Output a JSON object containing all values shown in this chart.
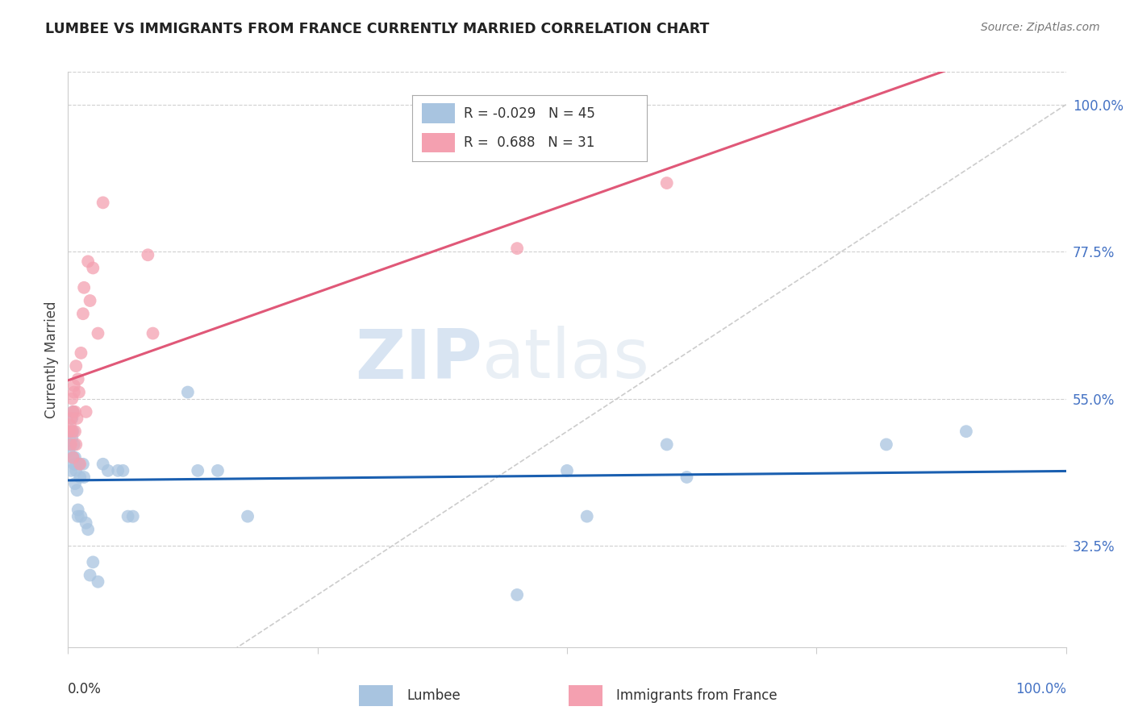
{
  "title": "LUMBEE VS IMMIGRANTS FROM FRANCE CURRENTLY MARRIED CORRELATION CHART",
  "source": "Source: ZipAtlas.com",
  "ylabel": "Currently Married",
  "ytick_labels": [
    "100.0%",
    "77.5%",
    "55.0%",
    "32.5%"
  ],
  "ytick_values": [
    1.0,
    0.775,
    0.55,
    0.325
  ],
  "xlim": [
    0.0,
    1.0
  ],
  "ylim": [
    0.17,
    1.05
  ],
  "lumbee_R": -0.029,
  "lumbee_N": 45,
  "france_R": 0.688,
  "france_N": 31,
  "lumbee_color": "#a8c4e0",
  "france_color": "#f4a0b0",
  "lumbee_line_color": "#1a5fb0",
  "france_line_color": "#e05878",
  "diagonal_color": "#cccccc",
  "lumbee_x": [
    0.001,
    0.002,
    0.003,
    0.003,
    0.004,
    0.004,
    0.005,
    0.005,
    0.005,
    0.006,
    0.006,
    0.007,
    0.007,
    0.008,
    0.008,
    0.009,
    0.01,
    0.01,
    0.011,
    0.012,
    0.013,
    0.015,
    0.016,
    0.018,
    0.02,
    0.022,
    0.025,
    0.03,
    0.035,
    0.04,
    0.05,
    0.055,
    0.06,
    0.065,
    0.12,
    0.13,
    0.15,
    0.18,
    0.45,
    0.5,
    0.52,
    0.6,
    0.62,
    0.82,
    0.9
  ],
  "lumbee_y": [
    0.47,
    0.48,
    0.44,
    0.5,
    0.52,
    0.49,
    0.46,
    0.5,
    0.53,
    0.45,
    0.48,
    0.42,
    0.46,
    0.44,
    0.45,
    0.41,
    0.38,
    0.37,
    0.45,
    0.43,
    0.37,
    0.45,
    0.43,
    0.36,
    0.35,
    0.28,
    0.3,
    0.27,
    0.45,
    0.44,
    0.44,
    0.44,
    0.37,
    0.37,
    0.56,
    0.44,
    0.44,
    0.37,
    0.25,
    0.44,
    0.37,
    0.48,
    0.43,
    0.48,
    0.5
  ],
  "france_x": [
    0.001,
    0.002,
    0.003,
    0.003,
    0.004,
    0.004,
    0.005,
    0.005,
    0.006,
    0.006,
    0.007,
    0.007,
    0.008,
    0.008,
    0.009,
    0.01,
    0.011,
    0.012,
    0.013,
    0.015,
    0.016,
    0.018,
    0.02,
    0.022,
    0.025,
    0.03,
    0.035,
    0.08,
    0.085,
    0.45,
    0.6
  ],
  "france_y": [
    0.5,
    0.51,
    0.48,
    0.52,
    0.5,
    0.55,
    0.46,
    0.53,
    0.56,
    0.57,
    0.5,
    0.53,
    0.6,
    0.48,
    0.52,
    0.58,
    0.56,
    0.45,
    0.62,
    0.68,
    0.72,
    0.53,
    0.76,
    0.7,
    0.75,
    0.65,
    0.85,
    0.77,
    0.65,
    0.78,
    0.88
  ],
  "watermark_zip": "ZIP",
  "watermark_atlas": "atlas",
  "background_color": "#ffffff",
  "grid_color": "#d0d0d0"
}
